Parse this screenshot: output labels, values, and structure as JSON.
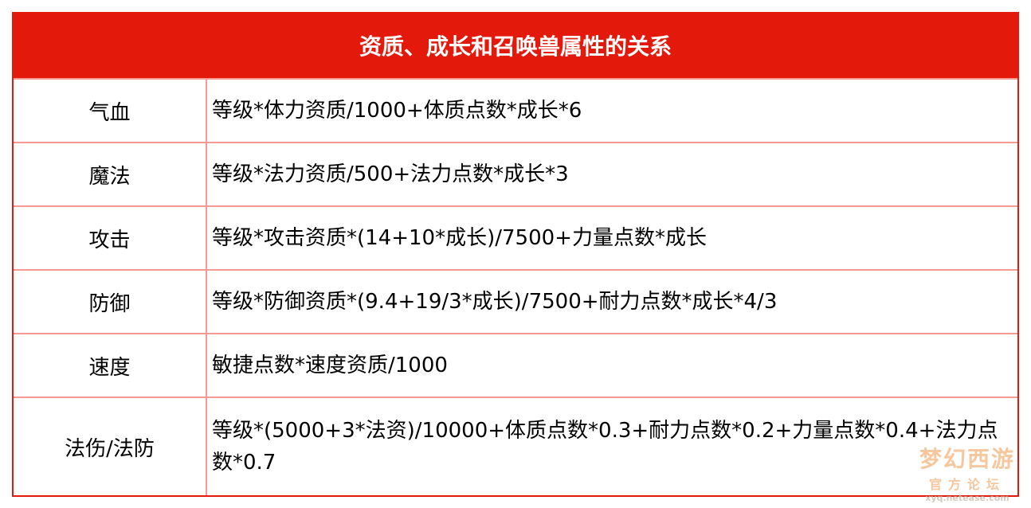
{
  "title": "资质、成长和召唤兽属性的关系",
  "rows": [
    {
      "attr": "气血",
      "formula": "等级*体力资质/1000+体质点数*成长*6"
    },
    {
      "attr": "魔法",
      "formula": "等级*法力资质/500+法力点数*成长*3"
    },
    {
      "attr": "攻击",
      "formula": "等级*攻击资质*(14+10*成长)/7500+力量点数*成长"
    },
    {
      "attr": "防御",
      "formula": "等级*防御资质*(9.4+19/3*成长)/7500+耐力点数*成长*4/3"
    },
    {
      "attr": "速度",
      "formula": "敏捷点数*速度资质/1000"
    },
    {
      "attr": "法伤/法防",
      "formula": "等级*(5000+3*法资)/10000+体质点数*0.3+耐力点数*0.2+力量点数*0.4+法力点数*0.7"
    }
  ],
  "watermark": {
    "logo": "梦幻西游",
    "sub": "官方论坛",
    "site": "xyq.netease.com"
  },
  "colors": {
    "header": "#e31a0b",
    "grid": "#f79a93"
  }
}
